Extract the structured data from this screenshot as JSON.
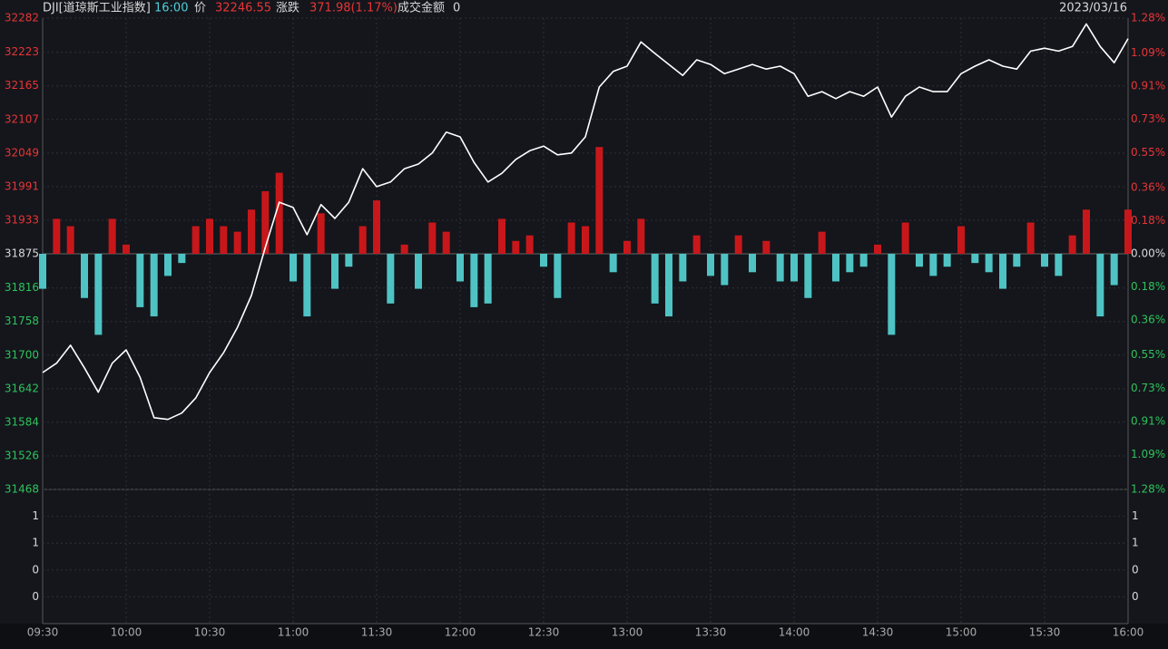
{
  "header": {
    "name": "DJI[道琼斯工业指数]",
    "time": "16:00",
    "price_label": "价",
    "price": 32246.55,
    "change_label": "涨跌",
    "change": "371.98(1.17%)",
    "amount_label": "成交金额",
    "amount": 0,
    "date": "2023/03/16"
  },
  "chart_data": {
    "type": "line",
    "x": [
      "09:30",
      "09:35",
      "09:40",
      "09:45",
      "09:50",
      "09:55",
      "10:00",
      "10:05",
      "10:10",
      "10:15",
      "10:20",
      "10:25",
      "10:30",
      "10:35",
      "10:40",
      "10:45",
      "10:50",
      "10:55",
      "11:00",
      "11:05",
      "11:10",
      "11:15",
      "11:20",
      "11:25",
      "11:30",
      "11:35",
      "11:40",
      "11:45",
      "11:50",
      "11:55",
      "12:00",
      "12:05",
      "12:10",
      "12:15",
      "12:20",
      "12:25",
      "12:30",
      "12:35",
      "12:40",
      "12:45",
      "12:50",
      "12:55",
      "13:00",
      "13:05",
      "13:10",
      "13:15",
      "13:20",
      "13:25",
      "13:30",
      "13:35",
      "13:40",
      "13:45",
      "13:50",
      "13:55",
      "14:00",
      "14:05",
      "14:10",
      "14:15",
      "14:20",
      "14:25",
      "14:30",
      "14:35",
      "14:40",
      "14:45",
      "14:50",
      "14:55",
      "15:00",
      "15:05",
      "15:10",
      "15:15",
      "15:20",
      "15:25",
      "15:30",
      "15:35",
      "15:40",
      "15:45",
      "15:50",
      "15:55",
      "16:00"
    ],
    "series": [
      {
        "color": "#ffffff",
        "values": [
          31670,
          31686,
          31717,
          31678,
          31636,
          31686,
          31709,
          31662,
          31592,
          31589,
          31600,
          31626,
          31670,
          31704,
          31748,
          31803,
          31886,
          31964,
          31955,
          31908,
          31960,
          31936,
          31964,
          32022,
          31991,
          31999,
          32022,
          32030,
          32049,
          32085,
          32077,
          32033,
          31999,
          32014,
          32038,
          32053,
          32061,
          32046,
          32049,
          32077,
          32163,
          32190,
          32199,
          32241,
          32221,
          32202,
          32183,
          32210,
          32202,
          32186,
          32194,
          32202,
          32194,
          32199,
          32186,
          32147,
          32155,
          32143,
          32155,
          32147,
          32163,
          32111,
          32147,
          32163,
          32155,
          32155,
          32186,
          32199,
          32210,
          32199,
          32194,
          32225,
          32230,
          32225,
          32233,
          32272,
          32233,
          32205,
          32246.55
        ]
      },
      {
        "type": "bar",
        "axis": "y2",
        "color": "#c8171a",
        "negative_color": "#4fc3c4",
        "values": [
          -0.19,
          0.19,
          0.15,
          -0.24,
          -0.44,
          0.19,
          0.05,
          -0.29,
          -0.34,
          -0.12,
          -0.05,
          0.15,
          0.19,
          0.15,
          0.12,
          0.24,
          0.34,
          0.44,
          -0.15,
          -0.34,
          0.22,
          -0.19,
          -0.07,
          0.15,
          0.29,
          -0.27,
          0.05,
          -0.19,
          0.17,
          0.12,
          -0.15,
          -0.29,
          -0.27,
          0.19,
          0.07,
          0.1,
          -0.07,
          -0.24,
          0.17,
          0.15,
          0.58,
          -0.1,
          0.07,
          0.19,
          -0.27,
          -0.34,
          -0.15,
          0.1,
          -0.12,
          -0.17,
          0.1,
          -0.1,
          0.07,
          -0.15,
          -0.15,
          -0.24,
          0.12,
          -0.15,
          -0.1,
          -0.07,
          0.05,
          -0.44,
          0.17,
          -0.07,
          -0.12,
          -0.07,
          0.15,
          -0.05,
          -0.1,
          -0.19,
          -0.07,
          0.17,
          -0.07,
          -0.12,
          0.1,
          0.24,
          -0.34,
          -0.17,
          0.24
        ]
      }
    ],
    "ylim": [
      31468,
      32282
    ],
    "yticks": [
      32282,
      32223,
      32165,
      32107,
      32049,
      31991,
      31933,
      31875,
      31816,
      31758,
      31700,
      31642,
      31584,
      31526,
      31468
    ],
    "y2lim": [
      -1.28,
      1.28
    ],
    "y2ticks": [
      {
        "value": 1.28,
        "label": "1.28%"
      },
      {
        "value": 1.09,
        "label": "1.09%"
      },
      {
        "value": 0.91,
        "label": "0.91%"
      },
      {
        "value": 0.73,
        "label": "0.73%"
      },
      {
        "value": 0.55,
        "label": "0.55%"
      },
      {
        "value": 0.36,
        "label": "0.36%"
      },
      {
        "value": 0.18,
        "label": "0.18%"
      },
      {
        "value": 0,
        "label": "0.00%"
      },
      {
        "value": -0.18,
        "label": "0.18%"
      },
      {
        "value": -0.36,
        "label": "0.36%"
      },
      {
        "value": -0.55,
        "label": "0.55%"
      },
      {
        "value": -0.73,
        "label": "0.73%"
      },
      {
        "value": -0.91,
        "label": "0.91%"
      },
      {
        "value": -1.09,
        "label": "1.09%"
      },
      {
        "value": -1.28,
        "label": "1.28%"
      }
    ],
    "vlim": [
      0,
      1
    ],
    "vticks": [
      {
        "value": 0.8,
        "label": "1"
      },
      {
        "value": 0.6,
        "label": "1"
      },
      {
        "value": 0.4,
        "label": "0"
      },
      {
        "value": 0.2,
        "label": "0"
      }
    ],
    "xticks": [
      "09:30",
      "10:00",
      "10:30",
      "11:00",
      "11:30",
      "12:00",
      "12:30",
      "13:00",
      "13:30",
      "14:00",
      "14:30",
      "15:00",
      "15:30",
      "16:00"
    ],
    "grid": true
  }
}
